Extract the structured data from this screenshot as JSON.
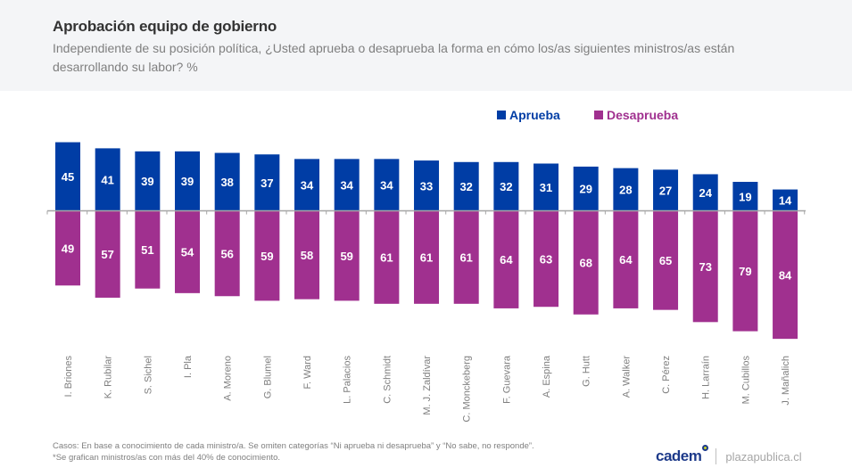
{
  "header": {
    "title": "Aprobación equipo de gobierno",
    "subtitle": "Independiente de su posición política, ¿Usted aprueba o desaprueba la forma en cómo los/as siguientes ministros/as están desarrollando su labor? %"
  },
  "colors": {
    "aprueba": "#003da5",
    "desaprueba": "#a0308f",
    "axis": "#a6a6a6",
    "category_label": "#7f7f7f"
  },
  "chart_data": {
    "type": "bar",
    "title": "Aprobación equipo de gobierno",
    "xlabel": "",
    "ylabel": "%",
    "legend_position": "top-right",
    "grid": false,
    "orientation": "diverging (Aprueba above axis, Desaprueba below axis)",
    "ylim": [
      -90,
      50
    ],
    "categories": [
      "I. Briones",
      "K. Rubilar",
      "S. Sichel",
      "I. Pla",
      "A. Moreno",
      "G. Blumel",
      "F. Ward",
      "L. Palacios",
      "C. Schmidt",
      "M. J. Zaldívar",
      "C. Monckeberg",
      "F. Guevara",
      "A. Espina",
      "G. Hutt",
      "A. Walker",
      "C. Pérez",
      "H. Larraín",
      "M. Cubillos",
      "J. Mañalich"
    ],
    "series": [
      {
        "name": "Aprueba",
        "color": "#003da5",
        "values": [
          45,
          41,
          39,
          39,
          38,
          37,
          34,
          34,
          34,
          33,
          32,
          32,
          31,
          29,
          28,
          27,
          24,
          19,
          14
        ]
      },
      {
        "name": "Desaprueba",
        "color": "#a0308f",
        "values": [
          49,
          57,
          51,
          54,
          56,
          59,
          58,
          59,
          61,
          61,
          61,
          64,
          63,
          68,
          64,
          65,
          73,
          79,
          84
        ]
      }
    ]
  },
  "legend": {
    "aprueba_label": "Aprueba",
    "desaprueba_label": "Desaprueba"
  },
  "footer": {
    "note1": "Casos: En base a conocimiento de cada ministro/a. Se omiten categorías “Ni aprueba ni desaprueba” y “No sabe, no responde”.",
    "note2": "*Se grafican ministros/as con más del 40% de conocimiento.",
    "brand": "cadem",
    "site": "plazapublica.cl"
  }
}
